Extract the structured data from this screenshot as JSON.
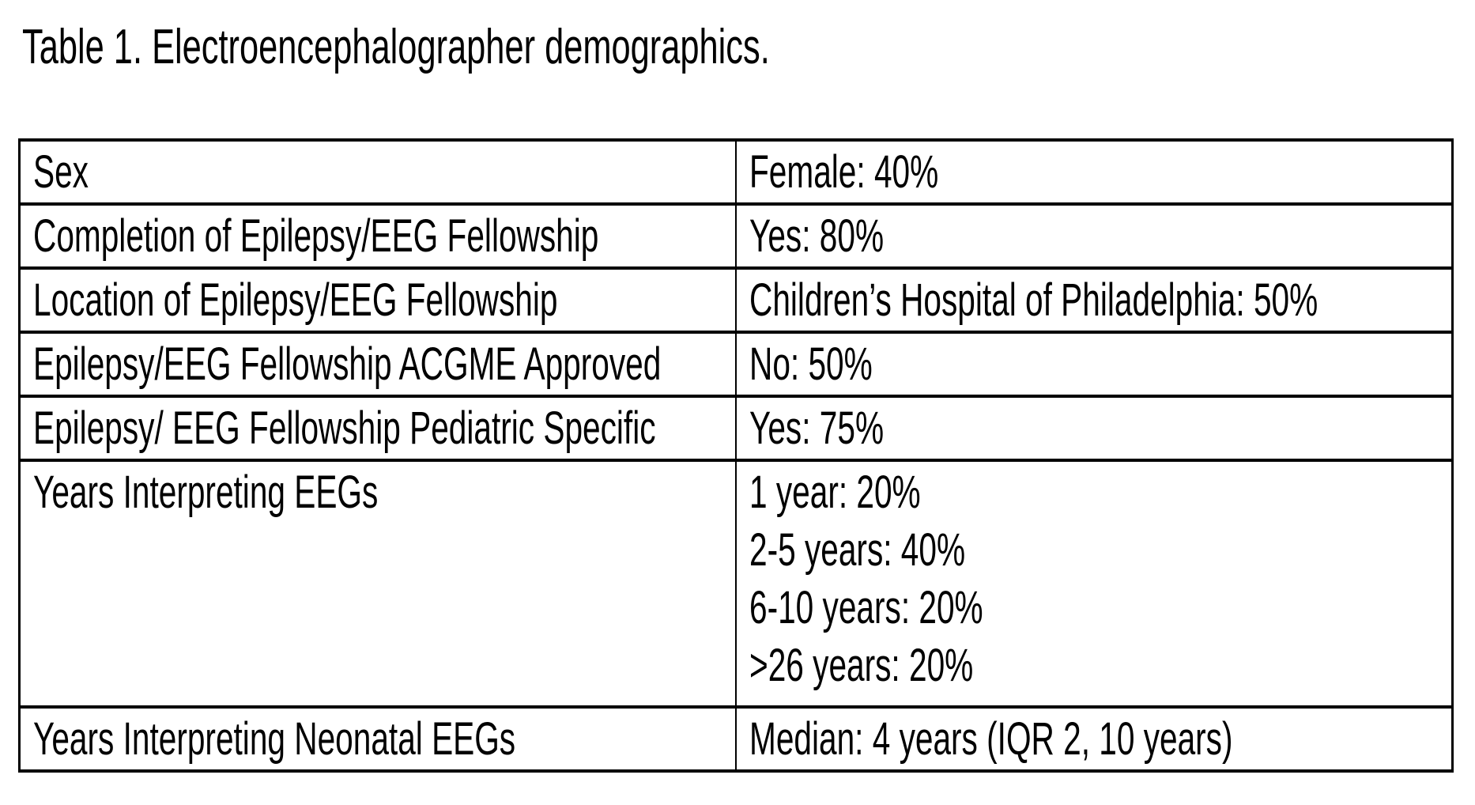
{
  "title": "Table 1. Electroencephalographer demographics.",
  "colors": {
    "text": "#000000",
    "border": "#000000",
    "background": "#ffffff"
  },
  "table": {
    "rows": [
      {
        "label": "Sex",
        "value": "Female: 40%"
      },
      {
        "label": "Completion of Epilepsy/EEG Fellowship",
        "value": "Yes: 80%"
      },
      {
        "label": "Location of Epilepsy/EEG Fellowship",
        "value": "Children’s Hospital of Philadelphia: 50%"
      },
      {
        "label": "Epilepsy/EEG Fellowship ACGME Approved",
        "value": "No: 50%"
      },
      {
        "label": "Epilepsy/ EEG Fellowship Pediatric Specific",
        "value": "Yes: 75%"
      },
      {
        "label": "Years Interpreting EEGs",
        "value_lines": [
          "1 year: 20%",
          "2-5 years: 40%",
          "6-10 years: 20%",
          ">26 years: 20%"
        ]
      },
      {
        "label": "Years Interpreting Neonatal EEGs",
        "value": "Median: 4 years (IQR 2, 10 years)"
      }
    ]
  }
}
